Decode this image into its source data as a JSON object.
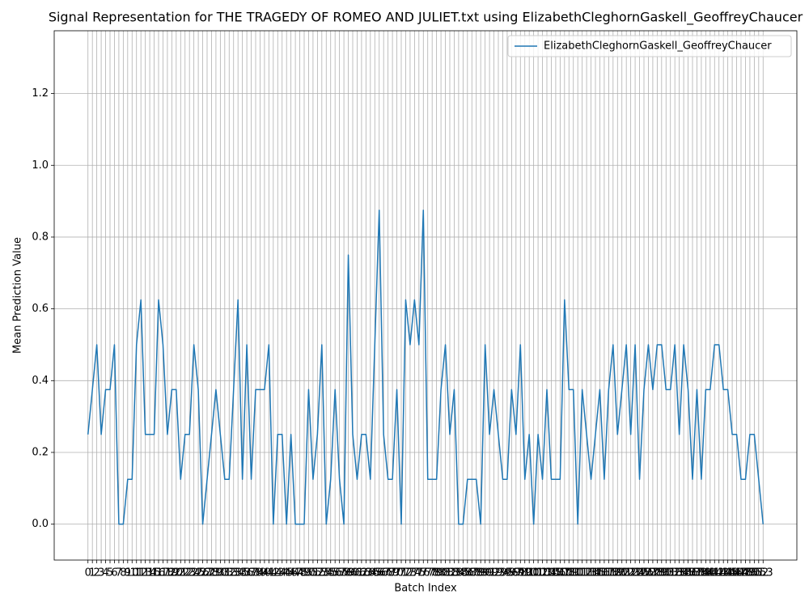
{
  "chart_data": {
    "type": "line",
    "title": "Signal Representation for THE TRAGEDY OF ROMEO AND JULIET.txt using ElizabethCleghornGaskell_GeoffreyChaucer",
    "xlabel": "Batch Index",
    "ylabel": "Mean Prediction Value",
    "x": [
      0,
      1,
      2,
      3,
      4,
      5,
      6,
      7,
      8,
      9,
      10,
      11,
      12,
      13,
      14,
      15,
      16,
      17,
      18,
      19,
      20,
      21,
      22,
      23,
      24,
      25,
      26,
      27,
      28,
      29,
      30,
      31,
      32,
      33,
      34,
      35,
      36,
      37,
      38,
      39,
      40,
      41,
      42,
      43,
      44,
      45,
      46,
      47,
      48,
      49,
      50,
      51,
      52,
      53,
      54,
      55,
      56,
      57,
      58,
      59,
      60,
      61,
      62,
      63,
      64,
      65,
      66,
      67,
      68,
      69,
      70,
      71,
      72,
      73,
      74,
      75,
      76,
      77,
      78,
      79,
      80,
      81,
      82,
      83,
      84,
      85,
      86,
      87,
      88,
      89,
      90,
      91,
      92,
      93,
      94,
      95,
      96,
      97,
      98,
      99,
      100,
      101,
      102,
      103,
      104,
      105,
      106,
      107,
      108,
      109,
      110,
      111,
      112,
      113,
      114,
      115,
      116,
      117,
      118,
      119,
      120,
      121,
      122,
      123,
      124,
      125,
      126,
      127,
      128,
      129,
      130,
      131,
      132,
      133,
      134,
      135,
      136,
      137,
      138,
      139,
      140,
      141,
      142,
      143,
      144,
      145,
      146,
      147,
      148,
      149,
      150,
      151,
      152,
      153
    ],
    "series": [
      {
        "name": "ElizabethCleghornGaskell_GeoffreyChaucer",
        "color": "#1f77b4",
        "values": [
          0.25,
          0.375,
          0.5,
          0.25,
          0.375,
          0.375,
          0.5,
          0,
          0,
          0.125,
          0.125,
          0.5,
          0.625,
          0.25,
          0.25,
          0.25,
          0.625,
          0.5,
          0.25,
          0.375,
          0.375,
          0.125,
          0.25,
          0.25,
          0.5,
          0.375,
          0,
          0.125,
          0.25,
          0.375,
          0.25,
          0.125,
          0.125,
          0.375,
          0.625,
          0.125,
          0.5,
          0.125,
          0.375,
          0.375,
          0.375,
          0.5,
          0,
          0.25,
          0.25,
          0,
          0.25,
          0,
          0,
          0,
          0.375,
          0.125,
          0.25,
          0.5,
          0,
          0.125,
          0.375,
          0.125,
          0,
          0.75,
          0.25,
          0.125,
          0.25,
          0.25,
          0.125,
          0.5,
          0.875,
          0.25,
          0.125,
          0.125,
          0.375,
          0,
          0.625,
          0.5,
          0.625,
          0.5,
          0.875,
          0.125,
          0.125,
          0.125,
          0.375,
          0.5,
          0.25,
          0.375,
          0,
          0,
          0.125,
          0.125,
          0.125,
          0,
          0.5,
          0.25,
          0.375,
          0.25,
          0.125,
          0.125,
          0.375,
          0.25,
          0.5,
          0.125,
          0.25,
          0,
          0.25,
          0.125,
          0.375,
          0.125,
          0.125,
          0.125,
          0.625,
          0.375,
          0.375,
          0,
          0.375,
          0.25,
          0.125,
          0.25,
          0.375,
          0.125,
          0.375,
          0.5,
          0.25,
          0.375,
          0.5,
          0.25,
          0.5,
          0.125,
          0.375,
          0.5,
          0.375,
          0.5,
          0.5,
          0.375,
          0.375,
          0.5,
          0.25,
          0.5,
          0.375,
          0.125,
          0.375,
          0.125,
          0.375,
          0.375,
          0.5,
          0.5,
          0.375,
          0.375,
          0.25,
          0.25,
          0.125,
          0.125,
          0.25,
          0.25,
          0.125,
          0
        ]
      }
    ],
    "xlim": [
      -7.65,
      160.65
    ],
    "ylim": [
      -0.1,
      1.375
    ],
    "xticks": [
      0,
      1,
      2,
      3,
      4,
      5,
      6,
      7,
      8,
      9,
      10,
      11,
      12,
      13,
      14,
      15,
      16,
      17,
      18,
      19,
      20,
      21,
      22,
      23,
      24,
      25,
      26,
      27,
      28,
      29,
      30,
      31,
      32,
      33,
      34,
      35,
      36,
      37,
      38,
      39,
      40,
      41,
      42,
      43,
      44,
      45,
      46,
      47,
      48,
      49,
      50,
      51,
      52,
      53,
      54,
      55,
      56,
      57,
      58,
      59,
      60,
      61,
      62,
      63,
      64,
      65,
      66,
      67,
      68,
      69,
      70,
      71,
      72,
      73,
      74,
      75,
      76,
      77,
      78,
      79,
      80,
      81,
      82,
      83,
      84,
      85,
      86,
      87,
      88,
      89,
      90,
      91,
      92,
      93,
      94,
      95,
      96,
      97,
      98,
      99,
      100,
      101,
      102,
      103,
      104,
      105,
      106,
      107,
      108,
      109,
      110,
      111,
      112,
      113,
      114,
      115,
      116,
      117,
      118,
      119,
      120,
      121,
      122,
      123,
      124,
      125,
      126,
      127,
      128,
      129,
      130,
      131,
      132,
      133,
      134,
      135,
      136,
      137,
      138,
      139,
      140,
      141,
      142,
      143,
      144,
      145,
      146,
      147,
      148,
      149,
      150,
      151,
      152,
      153
    ],
    "yticks": [
      {
        "value": 0,
        "label": "0.0"
      },
      0.2,
      0.4,
      0.6,
      0.8,
      {
        "value": 1,
        "label": "1.0"
      },
      1.2
    ],
    "grid": true,
    "legend": "upper right"
  }
}
